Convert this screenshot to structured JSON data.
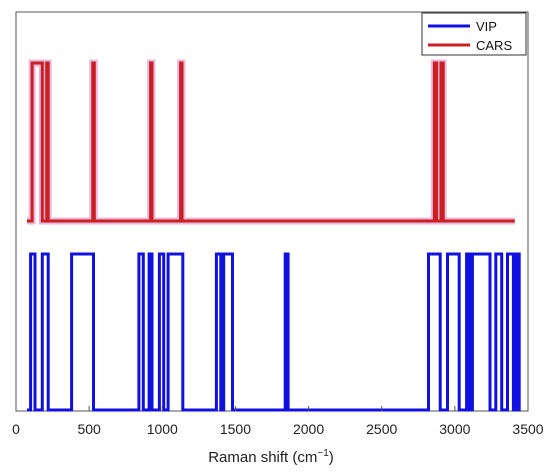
{
  "chart_data": {
    "type": "line",
    "title": "",
    "xlabel": "Raman shift (cm",
    "xlabel_sup": "−1",
    "xlabel_close": ")",
    "ylabel": "",
    "xlim": [
      0,
      3500
    ],
    "xticks": [
      0,
      500,
      1000,
      1500,
      2000,
      2500,
      3000,
      3500
    ],
    "grid": false,
    "legend_position": "top-right",
    "series": [
      {
        "name": "VIP",
        "color": "#1010e0",
        "baseline": 0,
        "high": 1,
        "segments": [
          [
            100,
            130
          ],
          [
            180,
            220
          ],
          [
            380,
            530
          ],
          [
            840,
            870
          ],
          [
            910,
            930
          ],
          [
            980,
            1010
          ],
          [
            1040,
            1140
          ],
          [
            1370,
            1400
          ],
          [
            1420,
            1480
          ],
          [
            1840,
            1860
          ],
          [
            2820,
            2900
          ],
          [
            2950,
            3030
          ],
          [
            3080,
            3100
          ],
          [
            3120,
            3240
          ],
          [
            3280,
            3320
          ],
          [
            3360,
            3400
          ],
          [
            3420,
            3440
          ]
        ]
      },
      {
        "name": "CARS",
        "color": "#cc2020",
        "baseline": 0,
        "high": 1,
        "segments": [
          [
            110,
            180
          ],
          [
            210,
            220
          ],
          [
            525,
            535
          ],
          [
            920,
            930
          ],
          [
            1125,
            1135
          ],
          [
            2860,
            2875
          ],
          [
            2905,
            2920
          ]
        ]
      }
    ]
  }
}
